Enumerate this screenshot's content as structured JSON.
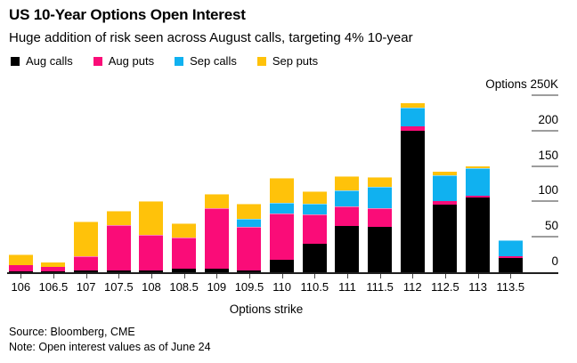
{
  "header": {
    "title": "US 10-Year Options Open Interest",
    "subtitle": "Huge addition of risk seen across August calls, targeting 4% 10-year"
  },
  "footer": {
    "source": "Source: Bloomberg, CME",
    "note": "Note: Open interest values as of June 24"
  },
  "chart_data": {
    "type": "bar",
    "stacked": true,
    "title": "US 10-Year Options Open Interest",
    "subtitle": "Huge addition of risk seen across August calls, targeting 4% 10-year",
    "xlabel": "Options strike",
    "ylabel": "Options 250K",
    "units": "K (thousands of contracts)",
    "ylim": [
      0,
      250
    ],
    "legend_position": "top-left",
    "y_axis_side": "right",
    "grid": false,
    "categories": [
      "106",
      "106.5",
      "107",
      "107.5",
      "108",
      "108.5",
      "109",
      "109.5",
      "110",
      "110.5",
      "111",
      "111.5",
      "112",
      "112.5",
      "113",
      "113.5"
    ],
    "series": [
      {
        "id": "aug-calls",
        "name": "Aug calls",
        "color": "#000000",
        "values": [
          1.5,
          1,
          2,
          2,
          3,
          4.5,
          5.5,
          2.5,
          17.5,
          40,
          65,
          64.5,
          200,
          95,
          106,
          19.5
        ]
      },
      {
        "id": "aug-puts",
        "name": "Aug puts",
        "color": "#fa0c78",
        "values": [
          9,
          7,
          21,
          65,
          50,
          44,
          85,
          62,
          65.5,
          42,
          27.5,
          26.5,
          6,
          5,
          2.5,
          2.5
        ]
      },
      {
        "id": "sep-calls",
        "name": "Sep calls",
        "color": "#10b1f0",
        "values": [
          0,
          0,
          0,
          0,
          0,
          0,
          0,
          11,
          15,
          14.5,
          22.5,
          30,
          27,
          36.5,
          39,
          23.5
        ]
      },
      {
        "id": "sep-puts",
        "name": "Sep puts",
        "color": "#ffc20a",
        "values": [
          15,
          5.5,
          48.5,
          19.5,
          48,
          20,
          20,
          21,
          35,
          18,
          21,
          13,
          6,
          6,
          2.5,
          0
        ]
      }
    ],
    "yticks": [
      {
        "value": 250,
        "label": "Options 250K"
      },
      {
        "value": 200,
        "label": "200"
      },
      {
        "value": 150,
        "label": "150"
      },
      {
        "value": 100,
        "label": "100"
      },
      {
        "value": 50,
        "label": "50"
      },
      {
        "value": 0,
        "label": "0"
      }
    ]
  }
}
